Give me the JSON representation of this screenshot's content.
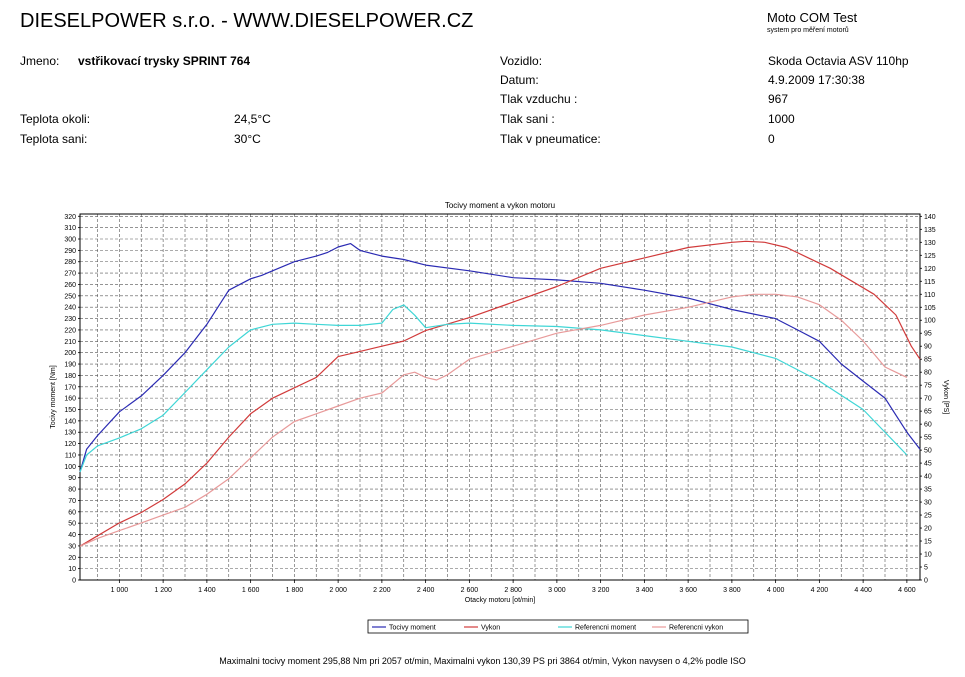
{
  "header": {
    "company": "DIESELPOWER s.r.o. - WWW.DIESELPOWER.CZ",
    "app_name": "Moto COM Test",
    "app_subtitle": "system pro měření motorů"
  },
  "info": {
    "jmeno_label": "Jmeno:",
    "jmeno_value": "vstřikovací trysky SPRINT 764",
    "teplota_okoli_label": "Teplota okoli:",
    "teplota_okoli_value": "24,5°C",
    "teplota_sani_label": "Teplota sani:",
    "teplota_sani_value": "30°C",
    "vozidlo_label": "Vozidlo:",
    "vozidlo_value": "Skoda Octavia ASV 110hp",
    "datum_label": "Datum:",
    "datum_value": "4.9.2009 17:30:38",
    "tlak_vzduchu_label": "Tlak vzduchu :",
    "tlak_vzduchu_value": "967",
    "tlak_sani_label": "Tlak sani :",
    "tlak_sani_value": "1000",
    "tlak_pneu_label": "Tlak v pneumatice:",
    "tlak_pneu_value": "0"
  },
  "footer": "Maximalni tocivy moment 295,88 Nm pri 2057 ot/min,  Maximalni vykon 130,39 PS pri 3864 ot/min,  Vykon navysen o 4,2% podle ISO",
  "chart_data": {
    "type": "line",
    "title": "Tocivy moment a vykon motoru",
    "xlabel": "Otacky motoru [ot/min]",
    "ylabel": "Tocivy moment [Nm]",
    "ylabel_right": "Vykon [PS]",
    "xlim": [
      820,
      4660
    ],
    "ylim": [
      0,
      322
    ],
    "ylim_right": [
      0,
      140.9
    ],
    "xticks": [
      1000,
      1200,
      1400,
      1600,
      1800,
      2000,
      2200,
      2400,
      2600,
      2800,
      3000,
      3200,
      3400,
      3600,
      3800,
      4000,
      4200,
      4400,
      4600
    ],
    "xtick_labels": [
      "1 000",
      "1 200",
      "1 400",
      "1 600",
      "1 800",
      "2 000",
      "2 200",
      "2 400",
      "2 600",
      "2 800",
      "3 000",
      "3 200",
      "3 400",
      "3 600",
      "3 800",
      "4 000",
      "4 200",
      "4 400",
      "4 600"
    ],
    "yticks": [
      0,
      10,
      20,
      30,
      40,
      50,
      60,
      70,
      80,
      90,
      100,
      110,
      120,
      130,
      140,
      150,
      160,
      170,
      180,
      190,
      200,
      210,
      220,
      230,
      240,
      250,
      260,
      270,
      280,
      290,
      300,
      310,
      320
    ],
    "yticks_right": [
      0,
      5,
      10,
      15,
      20,
      25,
      30,
      35,
      40,
      45,
      50,
      55,
      60,
      65,
      70,
      75,
      80,
      85,
      90,
      95,
      100,
      105,
      110,
      115,
      120,
      125,
      130,
      135,
      140
    ],
    "grid": true,
    "legend_position": "bottom",
    "series": [
      {
        "name": "Tocivy moment",
        "axis": "left",
        "color": "#2b2bb3",
        "x": [
          820,
          850,
          900,
          1000,
          1100,
          1200,
          1300,
          1400,
          1500,
          1600,
          1650,
          1700,
          1800,
          1900,
          1950,
          2000,
          2057,
          2100,
          2200,
          2300,
          2400,
          2600,
          2800,
          3000,
          3200,
          3400,
          3600,
          3800,
          4000,
          4100,
          4200,
          4300,
          4400,
          4500,
          4600,
          4660
        ],
        "y": [
          95,
          115,
          127,
          148,
          162,
          180,
          200,
          225,
          255,
          265,
          268,
          272,
          280,
          285,
          288,
          293,
          296,
          290,
          285,
          282,
          277,
          272,
          266,
          264,
          261,
          255,
          248,
          238,
          230,
          220,
          210,
          190,
          175,
          160,
          130,
          115
        ]
      },
      {
        "name": "Vykon",
        "axis": "right",
        "color": "#d13b3b",
        "x": [
          820,
          900,
          1000,
          1100,
          1200,
          1300,
          1400,
          1500,
          1600,
          1700,
          1800,
          1900,
          2000,
          2100,
          2200,
          2300,
          2400,
          2600,
          2800,
          3000,
          3200,
          3400,
          3600,
          3800,
          3864,
          3950,
          4050,
          4150,
          4250,
          4350,
          4450,
          4550,
          4620,
          4660
        ],
        "y": [
          13,
          17,
          22,
          26,
          31,
          37,
          45,
          55,
          64,
          70,
          74,
          78,
          86,
          88,
          90,
          92,
          96,
          101,
          107,
          113,
          120,
          124,
          128,
          130,
          130.4,
          130,
          128,
          124,
          120,
          115,
          110,
          102,
          90,
          85
        ]
      },
      {
        "name": "Referencni moment",
        "axis": "left",
        "color": "#3fd6d6",
        "x": [
          820,
          850,
          900,
          1000,
          1100,
          1200,
          1300,
          1400,
          1500,
          1600,
          1700,
          1800,
          1900,
          2000,
          2100,
          2200,
          2250,
          2300,
          2350,
          2400,
          2500,
          2600,
          2800,
          3000,
          3200,
          3400,
          3600,
          3800,
          4000,
          4200,
          4400,
          4600
        ],
        "y": [
          95,
          110,
          118,
          125,
          133,
          145,
          165,
          185,
          205,
          220,
          225,
          226,
          225,
          224,
          224,
          226,
          238,
          242,
          233,
          222,
          225,
          226,
          224,
          223,
          220,
          215,
          210,
          205,
          195,
          175,
          150,
          110
        ]
      },
      {
        "name": "Referencni vykon",
        "axis": "right",
        "color": "#e89a9a",
        "x": [
          820,
          900,
          1000,
          1100,
          1200,
          1300,
          1400,
          1500,
          1600,
          1700,
          1800,
          1900,
          2000,
          2100,
          2200,
          2300,
          2350,
          2400,
          2450,
          2500,
          2600,
          2800,
          3000,
          3200,
          3400,
          3600,
          3800,
          3900,
          4000,
          4100,
          4200,
          4300,
          4400,
          4500,
          4600
        ],
        "y": [
          13,
          16,
          19,
          22,
          25,
          28,
          33,
          39,
          47,
          55,
          61,
          64,
          67,
          70,
          72,
          79,
          80,
          78,
          77,
          79,
          85,
          90,
          95,
          98,
          102,
          105,
          109,
          110,
          110,
          109,
          106,
          100,
          92,
          82,
          78
        ]
      }
    ]
  }
}
